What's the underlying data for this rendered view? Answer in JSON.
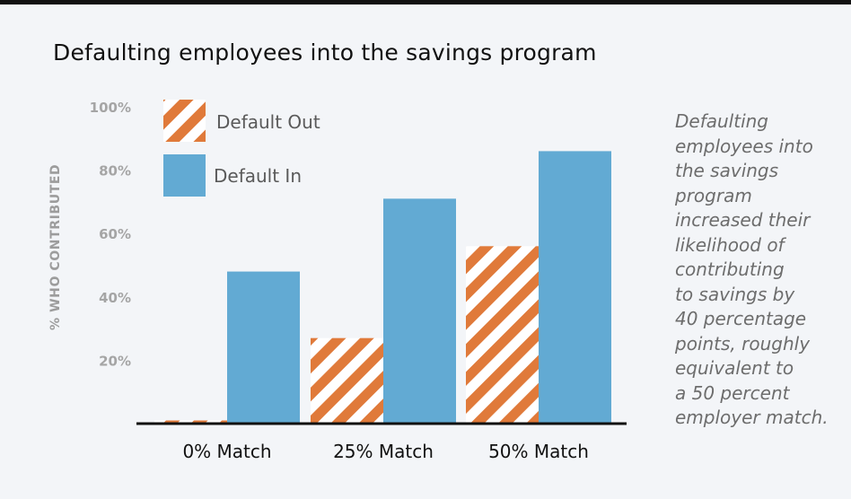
{
  "chart_data": {
    "type": "bar",
    "title": "Defaulting employees into the savings program",
    "xlabel": "",
    "ylabel": "% WHO CONTRIBUTED",
    "categories": [
      "0% Match",
      "25% Match",
      "50% Match"
    ],
    "series": [
      {
        "name": "Default Out",
        "values": [
          1,
          27,
          56
        ],
        "color": "#e07a3a",
        "pattern": "diagonal-stripes"
      },
      {
        "name": "Default In",
        "values": [
          48,
          71,
          86
        ],
        "color": "#62aad3",
        "pattern": "solid"
      }
    ],
    "ylim": [
      0,
      100
    ],
    "yticks": [
      "20%",
      "40%",
      "60%",
      "80%",
      "100%"
    ],
    "ytick_values": [
      20,
      40,
      60,
      80,
      100
    ],
    "legend_position": "top-left",
    "grid": false
  },
  "annotation": "Defaulting\nemployees into\nthe savings\nprogram\nincreased their\nlikelihood of\ncontributing\nto savings by\n40 percentage\npoints, roughly\nequivalent to\na 50 percent\nemployer match.",
  "colors": {
    "background": "#f3f5f8",
    "title": "#111111",
    "axis_text": "#a5a5a5",
    "annotation": "#6d6d6d"
  }
}
